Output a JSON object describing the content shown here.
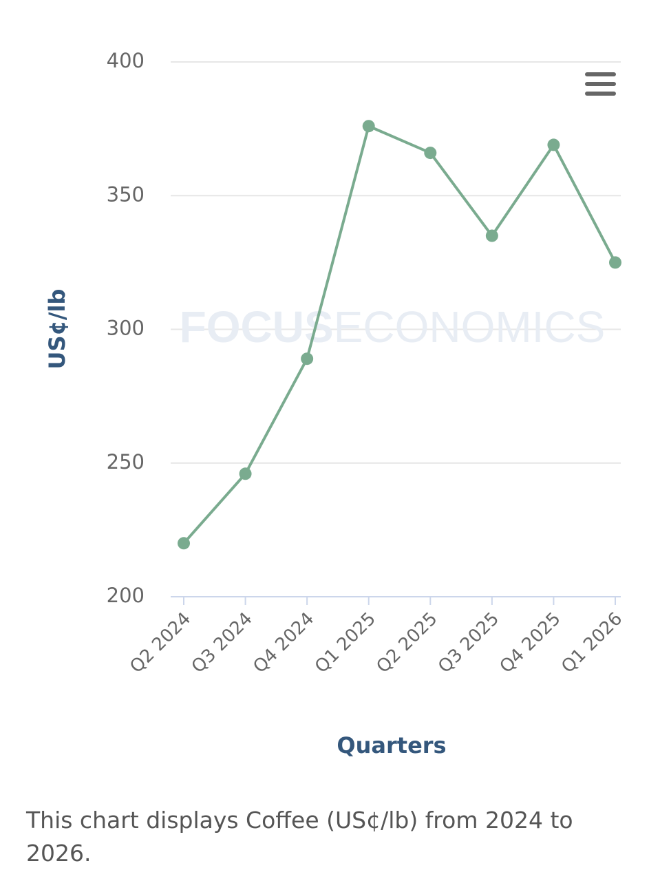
{
  "chart_data": {
    "type": "line",
    "y_title": "US¢/lb",
    "x_title": "Quarters",
    "watermark_bold": "FOCUS",
    "watermark_light": "ECONOMICS",
    "categories": [
      "Q2 2024",
      "Q3 2024",
      "Q4 2024",
      "Q1 2025",
      "Q2 2025",
      "Q3 2025",
      "Q4 2025",
      "Q1 2026"
    ],
    "series": [
      {
        "name": "Coffee",
        "color": "#7aab8f",
        "values": [
          220,
          246,
          289,
          376,
          366,
          335,
          369,
          325
        ]
      }
    ],
    "ylim": [
      200,
      400
    ],
    "yticks": [
      200,
      250,
      300,
      350,
      400
    ],
    "grid": true,
    "caption": "This chart displays Coffee (US¢/lb) from 2024 to 2026."
  }
}
